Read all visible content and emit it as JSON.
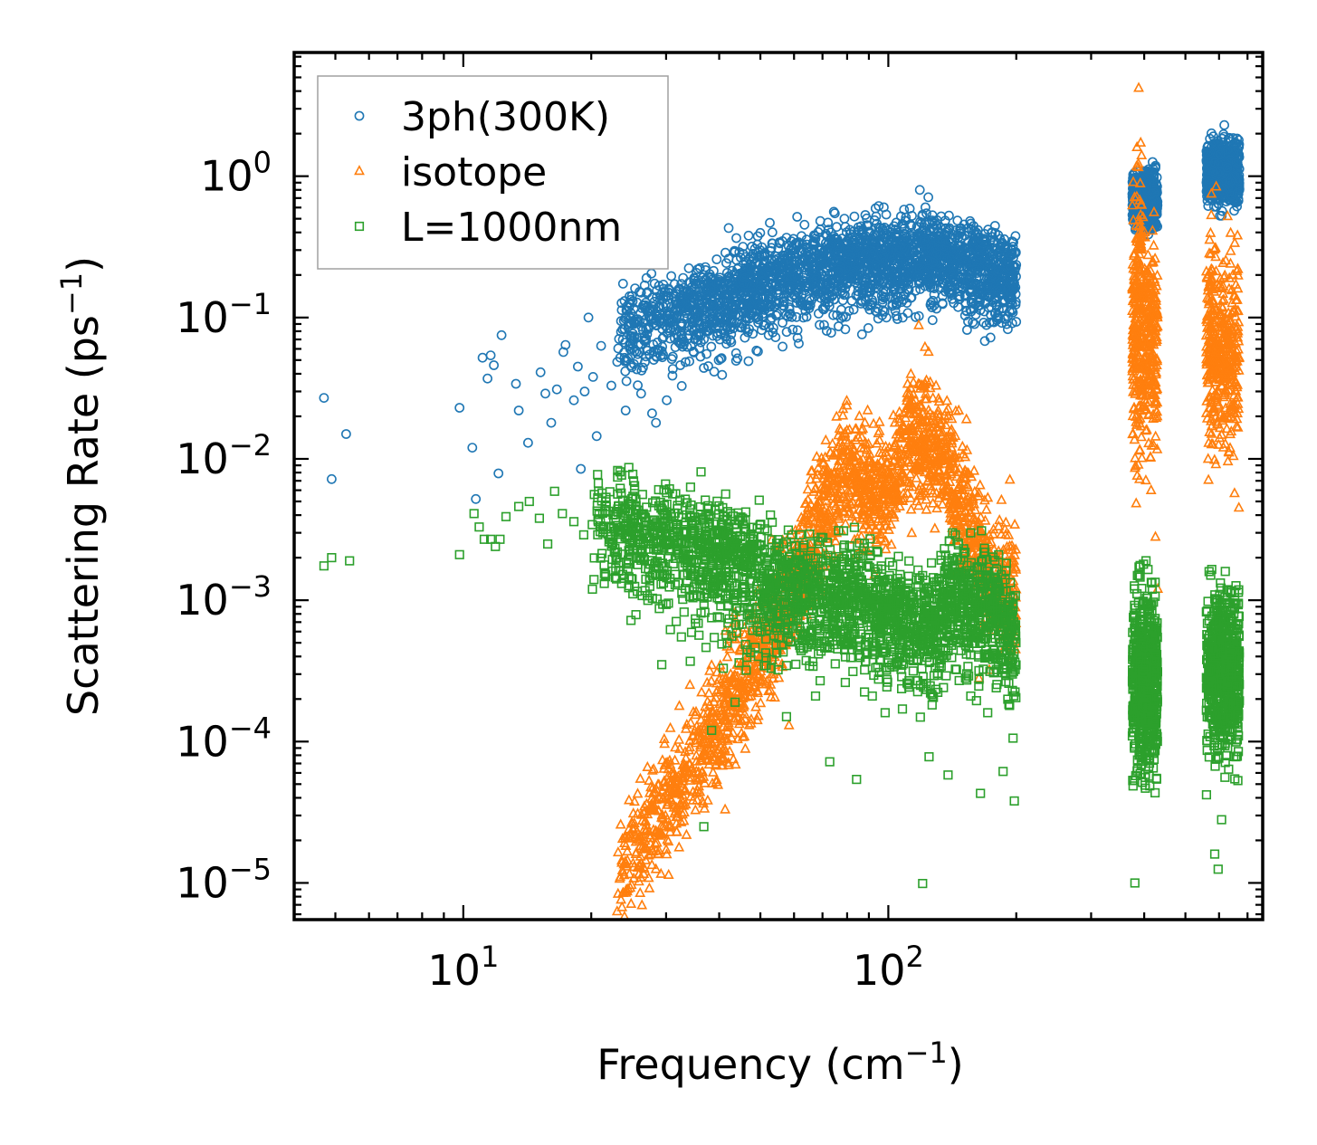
{
  "chart_data": {
    "type": "scatter",
    "title": "",
    "xlabel": "Frequency (cm",
    "xlabel_sup": "−1",
    "xlabel_end": ")",
    "ylabel": "Scattering Rate (ps",
    "ylabel_sup": "−1",
    "ylabel_end": ")",
    "xscale": "log",
    "yscale": "log",
    "xlim": [
      4,
      760
    ],
    "ylim": [
      5.5e-06,
      7.5
    ],
    "x_ticks": [
      {
        "value": 10,
        "base": "10",
        "exp": "1"
      },
      {
        "value": 100,
        "base": "10",
        "exp": "2"
      }
    ],
    "y_ticks": [
      {
        "value": 1,
        "base": "10",
        "exp": "0"
      },
      {
        "value": 0.1,
        "base": "10",
        "exp": "−1"
      },
      {
        "value": 0.01,
        "base": "10",
        "exp": "−2"
      },
      {
        "value": 0.001,
        "base": "10",
        "exp": "−3"
      },
      {
        "value": 0.0001,
        "base": "10",
        "exp": "−4"
      },
      {
        "value": 1e-05,
        "base": "10",
        "exp": "−5"
      }
    ],
    "legend_position": "top-left",
    "series": [
      {
        "name": "3ph(300K)",
        "marker": "circle",
        "color": "#1f77b4",
        "points": [
          [
            4.7,
            0.027
          ],
          [
            4.9,
            0.0072
          ],
          [
            5.3,
            0.015
          ],
          [
            9.8,
            0.023
          ],
          [
            10.5,
            0.012
          ],
          [
            10.7,
            0.0052
          ],
          [
            11.1,
            0.052
          ],
          [
            11.4,
            0.037
          ],
          [
            11.6,
            0.054
          ],
          [
            11.8,
            0.046
          ],
          [
            12.1,
            0.0079
          ],
          [
            12.3,
            0.075
          ],
          [
            13.3,
            0.034
          ],
          [
            13.5,
            0.022
          ],
          [
            14.2,
            0.013
          ],
          [
            15.2,
            0.041
          ],
          [
            15.6,
            0.029
          ],
          [
            16.1,
            0.018
          ],
          [
            16.6,
            0.031
          ],
          [
            17.2,
            0.057
          ],
          [
            17.4,
            0.064
          ],
          [
            18.2,
            0.026
          ],
          [
            18.6,
            0.045
          ],
          [
            18.9,
            0.0085
          ],
          [
            19.3,
            0.03
          ],
          [
            19.7,
            0.1
          ],
          [
            20.6,
            0.0145
          ],
          [
            20.2,
            0.038
          ],
          [
            21.1,
            0.063
          ],
          [
            22.3,
            0.033
          ],
          [
            23.4,
            0.052
          ],
          [
            24.1,
            0.022
          ],
          [
            24.8,
            0.065
          ],
          [
            25.6,
            0.043
          ],
          [
            26.2,
            0.029
          ],
          [
            27.1,
            0.11
          ],
          [
            27.8,
            0.021
          ],
          [
            28.4,
            0.018
          ],
          [
            29.3,
            0.058
          ],
          [
            30.1,
            0.026
          ],
          [
            31.2,
            0.089
          ],
          [
            32.4,
            0.046
          ],
          [
            33.7,
            0.12
          ],
          [
            35.1,
            0.071
          ],
          [
            36.8,
            0.044
          ],
          [
            38.2,
            0.16
          ],
          [
            40.3,
            0.051
          ],
          [
            42.1,
            0.43
          ],
          [
            44.6,
            0.29
          ],
          [
            46.9,
            0.38
          ],
          [
            49.4,
            0.092
          ],
          [
            52.3,
            0.075
          ],
          [
            55.9,
            0.18
          ],
          [
            59.8,
            0.36
          ],
          [
            64.2,
            0.12
          ],
          [
            68.5,
            0.28
          ],
          [
            72.1,
            0.47
          ],
          [
            76.4,
            0.21
          ],
          [
            81.3,
            0.39
          ],
          [
            86.7,
            0.076
          ],
          [
            92.6,
            0.33
          ],
          [
            98.4,
            0.14
          ],
          [
            104.9,
            0.24
          ],
          [
            112.3,
            0.59
          ],
          [
            118.6,
            0.8
          ],
          [
            124.2,
            0.71
          ],
          [
            131.5,
            0.32
          ],
          [
            139.8,
            0.21
          ],
          [
            146.3,
            0.37
          ],
          [
            155.7,
            0.16
          ],
          [
            163.2,
            0.28
          ],
          [
            172.4,
            0.19
          ],
          [
            181.5,
            0.24
          ],
          [
            188.2,
            0.13
          ],
          [
            193.6,
            0.22
          ],
          [
            197.1,
            0.16
          ],
          [
            380.2,
            0.058
          ],
          [
            385.4,
            0.69
          ],
          [
            392.6,
            0.96
          ],
          [
            401.3,
            0.79
          ],
          [
            409.8,
            1.12
          ],
          [
            418.6,
            1.26
          ],
          [
            428.4,
            0.98
          ],
          [
            565.3,
            1.64
          ],
          [
            578.9,
            1.09
          ],
          [
            592.4,
            0.88
          ],
          [
            603.7,
            1.42
          ],
          [
            617.2,
            2.3
          ],
          [
            628.4,
            1.54
          ],
          [
            639.6,
            0.93
          ],
          [
            651.2,
            0.57
          ],
          [
            662.1,
            0.76
          ]
        ],
        "band": {
          "x_min": 23,
          "x_max": 200,
          "points": [
            [
              23,
              0.08
            ],
            [
              30,
              0.1
            ],
            [
              40,
              0.13
            ],
            [
              50,
              0.18
            ],
            [
              60,
              0.21
            ],
            [
              80,
              0.24
            ],
            [
              100,
              0.25
            ],
            [
              120,
              0.3
            ],
            [
              150,
              0.24
            ],
            [
              180,
              0.21
            ],
            [
              200,
              0.19
            ]
          ],
          "spread_lo": 0.4,
          "spread_hi": 1.9,
          "count": 2600
        },
        "clusters": [
          {
            "x_min": 375,
            "x_max": 430,
            "y_min": 0.35,
            "y_max": 1.3,
            "count": 600
          },
          {
            "x_min": 560,
            "x_max": 670,
            "y_min": 0.5,
            "y_max": 2.2,
            "count": 700
          }
        ]
      },
      {
        "name": "isotope",
        "marker": "triangle",
        "color": "#ff7f0e",
        "points": [
          [
            23.4,
            1.1e-05
          ],
          [
            24.6,
            1.15e-05
          ],
          [
            25.9,
            1.02e-05
          ],
          [
            27.3,
            1.08e-05
          ],
          [
            28.8,
            1.6e-05
          ],
          [
            30.2,
            2.8e-05
          ],
          [
            31.6,
            4.6e-05
          ],
          [
            33.4,
            7.6e-05
          ],
          [
            35.8,
            0.00012
          ],
          [
            38.9,
            0.00019
          ],
          [
            41.3,
            3.3e-05
          ],
          [
            43.7,
            0.00029
          ],
          [
            46.2,
            0.00036
          ],
          [
            48.8,
            0.0009
          ],
          [
            52.6,
            0.00052
          ],
          [
            58.4,
            0.00013
          ],
          [
            62.9,
            0.0024
          ],
          [
            68.3,
            0.0041
          ],
          [
            72.1,
            0.0068
          ],
          [
            77.4,
            0.011
          ],
          [
            82.6,
            0.0074
          ],
          [
            88.3,
            0.0045
          ],
          [
            95.4,
            0.011
          ],
          [
            103.2,
            0.0062
          ],
          [
            110.7,
            0.027
          ],
          [
            117.9,
            0.088
          ],
          [
            124.3,
            0.057
          ],
          [
            132.1,
            0.013
          ],
          [
            141.6,
            0.0093
          ],
          [
            152.7,
            0.019
          ],
          [
            163.4,
            0.00028
          ],
          [
            172.9,
            0.00032
          ],
          [
            184.6,
            0.0051
          ],
          [
            193.2,
            0.0071
          ],
          [
            197.4,
            0.0019
          ],
          [
            380.4,
            0.0086
          ],
          [
            384.6,
            1.6
          ],
          [
            388.2,
            4.2
          ],
          [
            392.4,
            0.53
          ],
          [
            398.8,
            0.036
          ],
          [
            405.6,
            0.016
          ],
          [
            412.3,
            0.049
          ],
          [
            418.9,
            0.25
          ],
          [
            425.1,
            0.0028
          ],
          [
            430.6,
            0.0012
          ],
          [
            560.2,
            0.021
          ],
          [
            575.4,
            0.75
          ],
          [
            588.6,
            0.31
          ],
          [
            601.9,
            0.056
          ],
          [
            614.2,
            0.012
          ],
          [
            628.3,
            0.52
          ],
          [
            640.5,
            0.064
          ],
          [
            652.6,
            0.0057
          ],
          [
            663.8,
            0.22
          ],
          [
            668.1,
            0.0045
          ]
        ],
        "band": {
          "x_min": 23,
          "x_max": 200,
          "points": [
            [
              23,
              1.2e-05
            ],
            [
              30,
              3.5e-05
            ],
            [
              40,
              0.00013
            ],
            [
              50,
              0.0004
            ],
            [
              60,
              0.0012
            ],
            [
              70,
              0.004
            ],
            [
              80,
              0.008
            ],
            [
              90,
              0.006
            ],
            [
              100,
              0.006
            ],
            [
              115,
              0.015
            ],
            [
              130,
              0.012
            ],
            [
              150,
              0.004
            ],
            [
              175,
              0.0015
            ],
            [
              200,
              0.001
            ]
          ],
          "spread_lo": 0.35,
          "spread_hi": 2.8,
          "count": 2300
        },
        "clusters": [
          {
            "x_min": 375,
            "x_max": 395,
            "y_min": 0.003,
            "y_max": 3.5,
            "count": 220
          },
          {
            "x_min": 395,
            "x_max": 430,
            "y_min": 0.005,
            "y_max": 0.8,
            "count": 240
          },
          {
            "x_min": 560,
            "x_max": 600,
            "y_min": 0.005,
            "y_max": 0.9,
            "count": 180
          },
          {
            "x_min": 600,
            "x_max": 670,
            "y_min": 0.005,
            "y_max": 0.6,
            "count": 230
          }
        ]
      },
      {
        "name": "L=1000nm",
        "marker": "square",
        "color": "#2ca02c",
        "points": [
          [
            4.7,
            0.00175
          ],
          [
            4.9,
            0.002
          ],
          [
            5.4,
            0.0019
          ],
          [
            9.8,
            0.0021
          ],
          [
            10.6,
            0.0041
          ],
          [
            10.9,
            0.0033
          ],
          [
            11.2,
            0.0027
          ],
          [
            11.6,
            0.0027
          ],
          [
            11.9,
            0.0024
          ],
          [
            12.2,
            0.0027
          ],
          [
            12.6,
            0.0039
          ],
          [
            13.5,
            0.0046
          ],
          [
            14.3,
            0.005
          ],
          [
            15.1,
            0.0038
          ],
          [
            15.8,
            0.0025
          ],
          [
            16.4,
            0.0059
          ],
          [
            17.1,
            0.0041
          ],
          [
            18.2,
            0.0036
          ],
          [
            19.2,
            0.0029
          ],
          [
            20.3,
            0.0014
          ],
          [
            21.7,
            0.0046
          ],
          [
            23.2,
            0.0031
          ],
          [
            24.8,
            0.00072
          ],
          [
            26.4,
            0.0056
          ],
          [
            27.9,
            0.0049
          ],
          [
            29.3,
            0.00035
          ],
          [
            30.7,
            0.00062
          ],
          [
            32.6,
            0.00055
          ],
          [
            34.2,
            0.00037
          ],
          [
            36.8,
            2.5e-05
          ],
          [
            38.4,
            0.00012
          ],
          [
            40.9,
            0.00033
          ],
          [
            43.6,
            0.00019
          ],
          [
            46.3,
            0.00032
          ],
          [
            49.7,
            0.0051
          ],
          [
            53.2,
            0.00038
          ],
          [
            57.6,
            0.00015
          ],
          [
            62.1,
            0.0029
          ],
          [
            67.4,
            0.00021
          ],
          [
            72.8,
            7.2e-05
          ],
          [
            78.5,
            0.0031
          ],
          [
            84.2,
            5.4e-05
          ],
          [
            91.7,
            0.00021
          ],
          [
            98.3,
            0.00016
          ],
          [
            105.6,
            0.00081
          ],
          [
            112.9,
            0.00042
          ],
          [
            120.4,
            9.9e-06
          ],
          [
            124.7,
            7.8e-05
          ],
          [
            130.6,
            0.0005
          ],
          [
            138.2,
            5.8e-05
          ],
          [
            146.8,
            0.00027
          ],
          [
            156.3,
            0.00021
          ],
          [
            164.7,
            4.3e-05
          ],
          [
            171.3,
            0.00016
          ],
          [
            179.4,
            0.00024
          ],
          [
            186.2,
            6.15e-05
          ],
          [
            192.8,
            0.00018
          ],
          [
            197.9,
            3.8e-05
          ],
          [
            380.3,
            1e-05
          ],
          [
            384.9,
            6.2e-05
          ],
          [
            391.6,
            0.00023
          ],
          [
            398.4,
            0.0018
          ],
          [
            405.8,
            0.00092
          ],
          [
            413.2,
            0.00048
          ],
          [
            420.7,
            0.00011
          ],
          [
            427.9,
            0.00021
          ],
          [
            560.6,
            4.2e-05
          ],
          [
            574.3,
            0.00026
          ],
          [
            586.2,
            1.6e-05
          ],
          [
            597.1,
            1.25e-05
          ],
          [
            608.4,
            2.8e-05
          ],
          [
            620.7,
            0.0016
          ],
          [
            632.5,
            0.00073
          ],
          [
            645.2,
            0.00032
          ],
          [
            657.8,
            7.8e-05
          ],
          [
            664.4,
            5.3e-05
          ]
        ],
        "band": {
          "x_min": 20,
          "x_max": 200,
          "points": [
            [
              20,
              0.0035
            ],
            [
              30,
              0.0028
            ],
            [
              40,
              0.002
            ],
            [
              50,
              0.0014
            ],
            [
              60,
              0.0011
            ],
            [
              80,
              0.001
            ],
            [
              100,
              0.0008
            ],
            [
              120,
              0.0006
            ],
            [
              140,
              0.001
            ],
            [
              160,
              0.0009
            ],
            [
              180,
              0.0008
            ],
            [
              200,
              0.0005
            ]
          ],
          "spread_lo": 0.3,
          "spread_hi": 2.4,
          "count": 2500
        },
        "clusters": [
          {
            "x_min": 375,
            "x_max": 430,
            "y_min": 3e-05,
            "y_max": 0.0022,
            "count": 650
          },
          {
            "x_min": 560,
            "x_max": 670,
            "y_min": 4e-05,
            "y_max": 0.0022,
            "count": 650
          }
        ]
      }
    ]
  }
}
